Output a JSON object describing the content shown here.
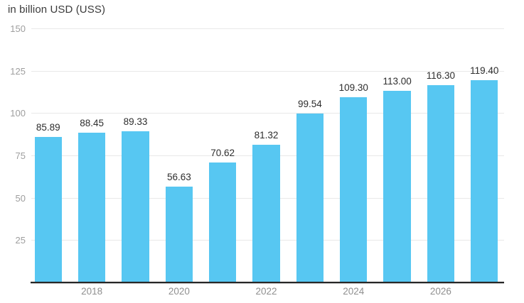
{
  "title": "in billion USD (USS)",
  "chart_data": {
    "type": "bar",
    "title": "in billion USD (USS)",
    "values": [
      85.89,
      88.45,
      89.33,
      56.63,
      70.62,
      81.32,
      99.54,
      109.3,
      113.0,
      116.3,
      119.4
    ],
    "bar_value_labels": [
      "85.89",
      "88.45",
      "89.33",
      "56.63",
      "70.62",
      "81.32",
      "99.54",
      "109.30",
      "113.00",
      "116.30",
      "119.40"
    ],
    "x_ticks": [
      {
        "label": "2018",
        "bar_index": 1
      },
      {
        "label": "2020",
        "bar_index": 3
      },
      {
        "label": "2022",
        "bar_index": 5
      },
      {
        "label": "2024",
        "bar_index": 7
      },
      {
        "label": "2026",
        "bar_index": 9
      }
    ],
    "y_ticks": [
      150,
      125,
      100,
      75,
      50,
      25
    ],
    "ylim": [
      0,
      150
    ],
    "grid": true,
    "legend": "none",
    "colors": {
      "bar": "#57C7F2",
      "grid": "#e8e8e8",
      "axis": "#272727",
      "value_label": "#2d2d2d",
      "tick_label": "#9e9e9e",
      "title": "#3b3b3b"
    }
  }
}
